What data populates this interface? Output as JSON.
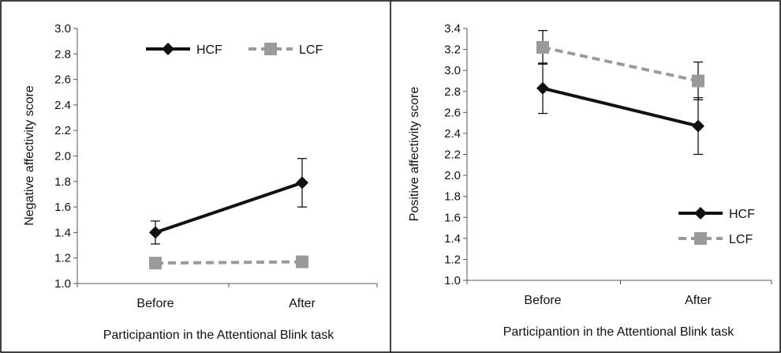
{
  "chart_data": [
    {
      "type": "line",
      "categories": [
        "Before",
        "After"
      ],
      "ylabel": "Negative affectivity score",
      "xlabel": "Participantion in the Attentional Blink task",
      "ylim": [
        1.0,
        3.0
      ],
      "yticks": [
        "1.0",
        "1.2",
        "1.4",
        "1.6",
        "1.8",
        "2.0",
        "2.2",
        "2.4",
        "2.6",
        "2.8",
        "3.0"
      ],
      "legend_position": "top",
      "series": [
        {
          "name": "HCF",
          "values": [
            1.4,
            1.79
          ],
          "error": [
            0.09,
            0.19
          ],
          "color": "#111111",
          "marker": "diamond",
          "dash": "solid"
        },
        {
          "name": "LCF",
          "values": [
            1.16,
            1.17
          ],
          "error": [
            0.02,
            0.03
          ],
          "color": "#9a9a9a",
          "marker": "square",
          "dash": "dashed"
        }
      ]
    },
    {
      "type": "line",
      "categories": [
        "Before",
        "After"
      ],
      "ylabel": "Positive affectivity score",
      "xlabel": "Participantion in the Attentional Blink task",
      "ylim": [
        1.0,
        3.4
      ],
      "yticks": [
        "1.0",
        "1.2",
        "1.4",
        "1.6",
        "1.8",
        "2.0",
        "2.2",
        "2.4",
        "2.6",
        "2.8",
        "3.0",
        "3.2",
        "3.4"
      ],
      "legend_position": "bottom-right",
      "series": [
        {
          "name": "HCF",
          "values": [
            2.83,
            2.47
          ],
          "error": [
            0.24,
            0.27
          ],
          "color": "#111111",
          "marker": "diamond",
          "dash": "solid"
        },
        {
          "name": "LCF",
          "values": [
            3.22,
            2.9
          ],
          "error": [
            0.16,
            0.18
          ],
          "color": "#9a9a9a",
          "marker": "square",
          "dash": "dashed"
        }
      ]
    }
  ]
}
